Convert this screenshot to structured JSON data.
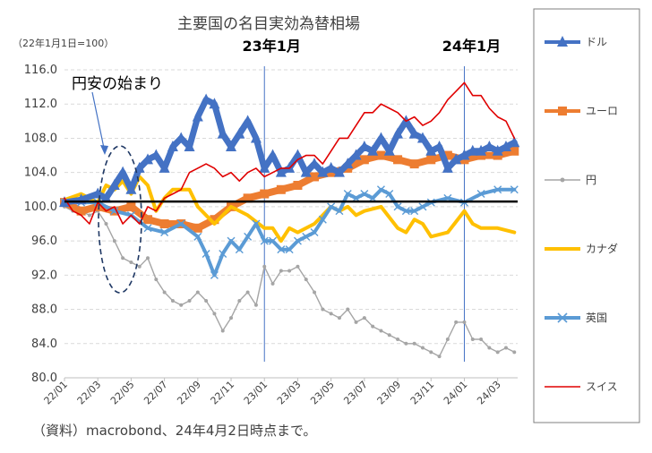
{
  "chart_data": {
    "type": "line",
    "title": "主要国の名目実効為替相場",
    "subtitle": "（22年1月1日=100）",
    "ylim": [
      80.0,
      116.0
    ],
    "yticks": [
      "116.0",
      "112.0",
      "108.0",
      "104.0",
      "100.0",
      "96.0",
      "92.0",
      "88.0",
      "84.0",
      "80.0"
    ],
    "ytick_values": [
      116,
      112,
      108,
      104,
      100,
      96,
      92,
      88,
      84,
      80
    ],
    "x_range": [
      0,
      27.2
    ],
    "xticks": [
      "22/01",
      "22/03",
      "22/05",
      "22/07",
      "22/09",
      "22/11",
      "23/01",
      "23/03",
      "23/05",
      "23/07",
      "23/09",
      "23/11",
      "24/01",
      "24/03"
    ],
    "xlabel": "",
    "ylabel": "",
    "grid": true,
    "baseline": 100.6,
    "vlines": [
      {
        "x": 12,
        "label": "23年1月"
      },
      {
        "x": 24,
        "label": "24年1月"
      }
    ],
    "annotation": "円安の始まり",
    "source": "（資料）macrobond、24年4月2日時点まで。",
    "series": [
      {
        "name": "ドル",
        "color": "#4472c4",
        "marker": "triangle",
        "x": [
          0,
          1,
          2,
          2.5,
          3,
          3.5,
          4,
          4.5,
          5,
          5.5,
          6,
          6.5,
          7,
          7.5,
          8,
          8.5,
          9,
          9.5,
          10,
          10.5,
          11,
          11.5,
          12,
          12.5,
          13,
          13.5,
          14,
          14.5,
          15,
          15.5,
          16,
          16.5,
          17,
          17.5,
          18,
          18.5,
          19,
          19.5,
          20,
          20.5,
          21,
          21.5,
          22,
          22.5,
          23,
          23.5,
          24,
          24.5,
          25,
          25.5,
          26,
          26.5,
          27
        ],
        "values": [
          100.5,
          100.8,
          101.5,
          101,
          102.5,
          104,
          102,
          104.5,
          105.5,
          106,
          104.5,
          107,
          108,
          107,
          110.5,
          112.5,
          112,
          108.5,
          107,
          108.5,
          110,
          108,
          104.5,
          106,
          104,
          104.5,
          106,
          104,
          105,
          104,
          104.5,
          104,
          105,
          106,
          107,
          106.5,
          108,
          106.5,
          108.5,
          110,
          108.5,
          108,
          106.5,
          107,
          104.5,
          105.5,
          106,
          106.5,
          106.5,
          107,
          106.5,
          107,
          107.5
        ]
      },
      {
        "name": "ユーロ",
        "color": "#ed7d31",
        "marker": "square",
        "x": [
          0,
          1,
          2,
          3,
          4,
          5,
          6,
          7,
          8,
          9,
          10,
          11,
          12,
          13,
          14,
          15,
          16,
          17,
          18,
          19,
          20,
          21,
          22,
          23,
          24,
          25,
          26,
          27
        ],
        "values": [
          100.5,
          99.5,
          100,
          99.5,
          100,
          98.5,
          98,
          98,
          97.5,
          98.5,
          100,
          101,
          101.5,
          102,
          102.5,
          103.5,
          104,
          104.5,
          105.5,
          106,
          105.5,
          105,
          105.5,
          106,
          105.5,
          106,
          106,
          106.5
        ]
      },
      {
        "name": "円",
        "color": "#a5a5a5",
        "marker": "dot",
        "x": [
          0,
          0.5,
          1,
          1.5,
          2,
          2.5,
          3,
          3.5,
          4,
          4.5,
          5,
          5.5,
          6,
          6.5,
          7,
          7.5,
          8,
          8.5,
          9,
          9.5,
          10,
          10.5,
          11,
          11.5,
          12,
          12.5,
          13,
          13.5,
          14,
          14.5,
          15,
          15.5,
          16,
          16.5,
          17,
          17.5,
          18,
          18.5,
          19,
          19.5,
          20,
          20.5,
          21,
          21.5,
          22,
          22.5,
          23,
          23.5,
          24,
          24.5,
          25,
          25.5,
          26,
          26.5,
          27
        ],
        "values": [
          100,
          99.5,
          99.5,
          99,
          99.5,
          98,
          96,
          94,
          93.5,
          93,
          94,
          91.5,
          90,
          89,
          88.5,
          89,
          90,
          89,
          87.5,
          85.5,
          87,
          89,
          90,
          88.5,
          93,
          91,
          92.5,
          92.5,
          93,
          91.5,
          90,
          88,
          87.5,
          87,
          88,
          86.5,
          87,
          86,
          85.5,
          85,
          84.5,
          84,
          84,
          83.5,
          83,
          82.5,
          84.5,
          86.5,
          86.5,
          84.5,
          84.5,
          83.5,
          83,
          83.5,
          83
        ]
      },
      {
        "name": "カナダ",
        "color": "#ffc000",
        "marker": "none",
        "x": [
          0,
          1,
          2,
          2.5,
          3,
          3.5,
          4,
          4.5,
          5,
          5.5,
          6,
          6.5,
          7,
          7.5,
          8,
          9,
          10,
          11,
          12,
          12.5,
          13,
          13.5,
          14,
          15,
          16,
          16.5,
          17,
          17.5,
          18,
          19,
          20,
          20.5,
          21,
          21.5,
          22,
          23,
          24,
          24.5,
          25,
          26,
          27
        ],
        "values": [
          100.8,
          101.5,
          100.5,
          102.5,
          102,
          103,
          101.5,
          103.5,
          102.5,
          99.5,
          101,
          102,
          102,
          102,
          100,
          98,
          100,
          99,
          97.5,
          97.5,
          96,
          97.5,
          97,
          98,
          100,
          99.5,
          100,
          99,
          99.5,
          100,
          97.5,
          97,
          98.5,
          98,
          96.5,
          97,
          99.5,
          98,
          97.5,
          97.5,
          97
        ]
      },
      {
        "name": "英国",
        "color": "#5b9bd5",
        "marker": "x",
        "x": [
          0,
          1,
          2,
          3,
          4,
          5,
          6,
          7,
          8,
          8.5,
          9,
          9.5,
          10,
          10.5,
          11,
          11.5,
          12,
          12.5,
          13,
          13.5,
          14,
          14.5,
          15,
          15.5,
          16,
          16.5,
          17,
          17.5,
          18,
          18.5,
          19,
          19.5,
          20,
          20.5,
          21,
          21.5,
          22,
          23,
          24,
          25,
          26,
          27
        ],
        "values": [
          100.5,
          100.5,
          100.5,
          99.5,
          99,
          97.5,
          97,
          98,
          96.5,
          94.5,
          92,
          94.5,
          96,
          95,
          96.5,
          98,
          96,
          96,
          95,
          95,
          96,
          96.5,
          97,
          98.5,
          100,
          99.5,
          101.5,
          101,
          101.5,
          101,
          102,
          101.5,
          100,
          99.5,
          99.5,
          100,
          100.5,
          101,
          100.5,
          101.5,
          102,
          102
        ]
      },
      {
        "name": "スイス",
        "color": "#e00000",
        "marker": "none",
        "x": [
          0,
          0.5,
          1,
          1.5,
          2,
          2.5,
          3,
          3.5,
          4,
          4.5,
          5,
          5.5,
          6,
          6.5,
          7,
          7.5,
          8,
          8.5,
          9,
          9.5,
          10,
          10.5,
          11,
          11.5,
          12,
          12.5,
          13,
          13.5,
          14,
          14.5,
          15,
          15.5,
          16,
          16.5,
          17,
          17.5,
          18,
          18.5,
          19,
          19.5,
          20,
          20.5,
          21,
          21.5,
          22,
          22.5,
          23,
          23.5,
          24,
          24.5,
          25,
          25.5,
          26,
          26.5,
          27
        ],
        "values": [
          101,
          99.5,
          99,
          98,
          100.5,
          99.5,
          100,
          98,
          99,
          98,
          100,
          99.5,
          101,
          101.5,
          102,
          104,
          104.5,
          105,
          104.5,
          103.5,
          104,
          103,
          104,
          104.5,
          103.5,
          104,
          104.5,
          104.5,
          105.5,
          106,
          106,
          105,
          106.5,
          108,
          108,
          109.5,
          111,
          111,
          112,
          111.5,
          111,
          110,
          110.5,
          109.5,
          110,
          111,
          112.5,
          113.5,
          114.5,
          113,
          113,
          111.5,
          110.5,
          110,
          108
        ]
      }
    ]
  }
}
